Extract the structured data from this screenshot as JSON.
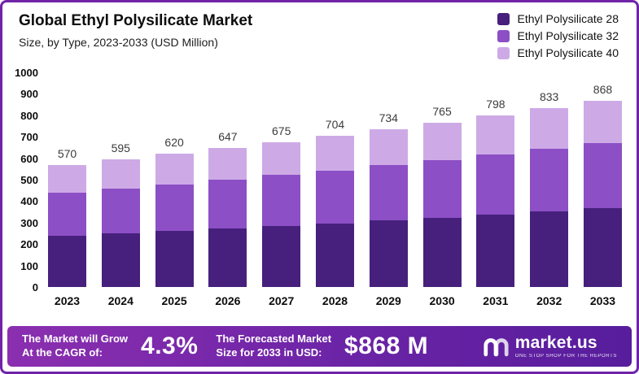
{
  "header": {
    "title": "Global Ethyl Polysilicate Market",
    "subtitle": "Size, by Type, 2023-2033 (USD Million)"
  },
  "legend": [
    {
      "label": "Ethyl Polysilicate 28",
      "color": "#46207c"
    },
    {
      "label": "Ethyl Polysilicate 32",
      "color": "#8c4fc5"
    },
    {
      "label": "Ethyl Polysilicate 40",
      "color": "#cdaae6"
    }
  ],
  "chart_data": {
    "type": "bar",
    "stacked": true,
    "title": "Global Ethyl Polysilicate Market",
    "subtitle": "Size, by Type, 2023-2033 (USD Million)",
    "categories": [
      "2023",
      "2024",
      "2025",
      "2026",
      "2027",
      "2028",
      "2029",
      "2030",
      "2031",
      "2032",
      "2033"
    ],
    "totals": [
      570,
      595,
      620,
      647,
      675,
      704,
      734,
      765,
      798,
      833,
      868
    ],
    "series": [
      {
        "name": "Ethyl Polysilicate 28",
        "color": "#46207c",
        "values": [
          240,
          250,
          262,
          273,
          285,
          297,
          310,
          323,
          337,
          351,
          366
        ]
      },
      {
        "name": "Ethyl Polysilicate 32",
        "color": "#8c4fc5",
        "values": [
          200,
          210,
          217,
          227,
          236,
          246,
          257,
          268,
          279,
          292,
          304
        ]
      },
      {
        "name": "Ethyl Polysilicate 40",
        "color": "#cdaae6",
        "values": [
          130,
          135,
          141,
          147,
          154,
          161,
          167,
          174,
          182,
          190,
          198
        ]
      }
    ],
    "xlabel": "",
    "ylabel": "",
    "ylim": [
      0,
      1000
    ],
    "yticks": [
      0,
      100,
      200,
      300,
      400,
      500,
      600,
      700,
      800,
      900,
      1000
    ],
    "grid": false,
    "legend_position": "top-right"
  },
  "footer": {
    "cagr_line1": "The Market will Grow",
    "cagr_line2": "At the CAGR of:",
    "cagr_value": "4.3%",
    "forecast_line1": "The Forecasted Market",
    "forecast_line2": "Size for 2033 in USD:",
    "forecast_value": "$868 M",
    "brand": "market.us",
    "brand_tagline": "One Stop Shop For The Reports"
  },
  "colors": {
    "frame_border": "#7123a8",
    "banner_gradient_start": "#8b2fb0",
    "banner_gradient_end": "#571d9c",
    "value_label": "#3b3b3b"
  }
}
